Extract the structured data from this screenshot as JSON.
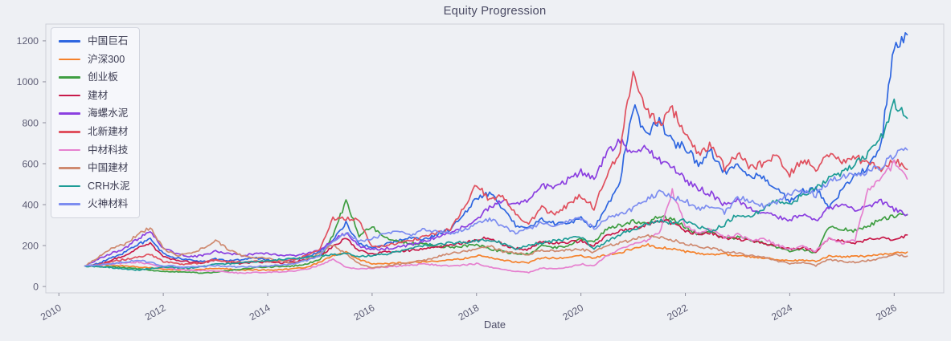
{
  "figure": {
    "background": "#eef0f4",
    "spine_color": "#cdd0d9",
    "tick_color": "#8e8e9c"
  },
  "chart_data": {
    "type": "line",
    "title": "Equity Progression",
    "xlabel": "Date",
    "ylabel": "",
    "grid": false,
    "legend_position": "upper-left",
    "xlim": [
      2009.75,
      2026.95
    ],
    "ylim": [
      -31,
      1282
    ],
    "x_ticks": [
      2010,
      2012,
      2014,
      2016,
      2018,
      2020,
      2022,
      2024,
      2026
    ],
    "y_ticks": [
      0,
      200,
      400,
      600,
      800,
      1000,
      1200
    ],
    "x": [
      2010.5,
      2010.75,
      2011,
      2011.25,
      2011.5,
      2011.75,
      2012,
      2012.25,
      2012.5,
      2012.75,
      2013,
      2013.25,
      2013.5,
      2013.75,
      2014,
      2014.25,
      2014.5,
      2014.75,
      2015,
      2015.25,
      2015.5,
      2015.75,
      2016,
      2016.25,
      2016.5,
      2016.75,
      2017,
      2017.25,
      2017.5,
      2017.75,
      2018,
      2018.25,
      2018.5,
      2018.75,
      2019,
      2019.25,
      2019.5,
      2019.75,
      2020,
      2020.25,
      2020.5,
      2020.75,
      2021,
      2021.25,
      2021.5,
      2021.75,
      2022,
      2022.25,
      2022.5,
      2022.75,
      2023,
      2023.25,
      2023.5,
      2023.75,
      2024,
      2024.25,
      2024.5,
      2024.75,
      2025,
      2025.25,
      2025.5,
      2025.75,
      2026,
      2026.25
    ],
    "series": [
      {
        "name": "中国巨石",
        "color": "#2e66e0",
        "values": [
          100,
          112,
          140,
          165,
          205,
          230,
          160,
          140,
          130,
          120,
          135,
          125,
          130,
          140,
          130,
          125,
          130,
          145,
          170,
          230,
          310,
          210,
          190,
          205,
          225,
          240,
          230,
          255,
          280,
          350,
          430,
          455,
          380,
          300,
          290,
          325,
          310,
          305,
          335,
          285,
          390,
          520,
          880,
          740,
          820,
          700,
          680,
          600,
          660,
          560,
          585,
          550,
          525,
          470,
          420,
          465,
          480,
          390,
          470,
          540,
          580,
          700,
          1180,
          1230
        ]
      },
      {
        "name": "沪深300",
        "color": "#f5812b",
        "values": [
          100,
          103,
          106,
          100,
          96,
          92,
          85,
          82,
          80,
          83,
          90,
          85,
          80,
          82,
          80,
          82,
          86,
          95,
          120,
          150,
          168,
          132,
          110,
          112,
          115,
          118,
          120,
          124,
          128,
          135,
          152,
          140,
          128,
          120,
          116,
          140,
          138,
          142,
          150,
          138,
          155,
          165,
          185,
          205,
          190,
          185,
          170,
          160,
          155,
          158,
          150,
          146,
          140,
          132,
          125,
          128,
          124,
          150,
          143,
          146,
          150,
          155,
          162,
          168
        ]
      },
      {
        "name": "创业板",
        "color": "#3f9e42",
        "values": [
          100,
          98,
          95,
          92,
          88,
          80,
          75,
          72,
          70,
          65,
          70,
          78,
          85,
          92,
          95,
          98,
          100,
          112,
          130,
          250,
          420,
          250,
          290,
          235,
          220,
          212,
          205,
          198,
          192,
          196,
          205,
          185,
          170,
          162,
          160,
          200,
          190,
          200,
          230,
          218,
          280,
          298,
          318,
          308,
          345,
          330,
          290,
          255,
          270,
          235,
          240,
          230,
          212,
          192,
          172,
          182,
          165,
          290,
          282,
          272,
          292,
          330,
          345,
          350
        ]
      },
      {
        "name": "建材",
        "color": "#c81a4a",
        "values": [
          100,
          105,
          130,
          150,
          185,
          210,
          145,
          130,
          120,
          115,
          130,
          120,
          112,
          118,
          120,
          116,
          120,
          130,
          150,
          195,
          235,
          175,
          160,
          168,
          172,
          178,
          182,
          192,
          200,
          215,
          232,
          238,
          205,
          185,
          182,
          220,
          210,
          215,
          222,
          200,
          252,
          268,
          282,
          300,
          325,
          310,
          272,
          255,
          262,
          235,
          232,
          222,
          212,
          198,
          182,
          192,
          172,
          232,
          222,
          215,
          228,
          238,
          228,
          252
        ]
      },
      {
        "name": "海螺水泥",
        "color": "#8b3fe0",
        "values": [
          100,
          132,
          162,
          185,
          232,
          268,
          185,
          162,
          145,
          152,
          172,
          162,
          152,
          158,
          162,
          152,
          150,
          162,
          182,
          225,
          262,
          198,
          180,
          186,
          192,
          205,
          222,
          242,
          262,
          292,
          325,
          385,
          420,
          398,
          420,
          498,
          478,
          518,
          558,
          535,
          648,
          712,
          652,
          682,
          618,
          578,
          522,
          478,
          452,
          398,
          418,
          378,
          362,
          338,
          328,
          352,
          322,
          382,
          398,
          378,
          388,
          418,
          378,
          352
        ]
      },
      {
        "name": "北新建材",
        "color": "#e0505e",
        "values": [
          100,
          108,
          122,
          132,
          142,
          158,
          122,
          112,
          108,
          118,
          132,
          122,
          118,
          122,
          120,
          125,
          132,
          152,
          185,
          330,
          332,
          330,
          190,
          200,
          212,
          225,
          242,
          262,
          282,
          385,
          498,
          425,
          442,
          352,
          305,
          385,
          352,
          398,
          448,
          385,
          552,
          655,
          1075,
          855,
          798,
          868,
          758,
          642,
          698,
          582,
          648,
          582,
          602,
          648,
          552,
          618,
          578,
          648,
          602,
          638,
          598,
          578,
          618,
          572
        ]
      },
      {
        "name": "中材科技",
        "color": "#e680cf",
        "values": [
          100,
          104,
          110,
          115,
          120,
          108,
          92,
          85,
          80,
          78,
          75,
          70,
          65,
          68,
          70,
          72,
          75,
          85,
          105,
          135,
          92,
          86,
          90,
          95,
          100,
          105,
          110,
          105,
          100,
          105,
          112,
          95,
          82,
          75,
          68,
          90,
          85,
          92,
          110,
          100,
          152,
          182,
          205,
          225,
          262,
          465,
          298,
          262,
          282,
          242,
          252,
          225,
          232,
          205,
          182,
          195,
          172,
          235,
          212,
          225,
          470,
          535,
          600,
          525
        ]
      },
      {
        "name": "中国建材",
        "color": "#cf8a70",
        "values": [
          100,
          142,
          185,
          205,
          252,
          288,
          185,
          152,
          162,
          185,
          225,
          182,
          152,
          142,
          138,
          125,
          112,
          132,
          162,
          205,
          158,
          112,
          92,
          98,
          108,
          118,
          128,
          145,
          162,
          172,
          185,
          198,
          172,
          162,
          158,
          178,
          172,
          178,
          182,
          168,
          198,
          212,
          228,
          248,
          238,
          228,
          208,
          195,
          188,
          172,
          162,
          152,
          142,
          125,
          112,
          118,
          102,
          132,
          122,
          118,
          128,
          138,
          158,
          148
        ]
      },
      {
        "name": "CRH水泥",
        "color": "#1d9c96",
        "values": [
          100,
          96,
          92,
          85,
          80,
          88,
          95,
          92,
          90,
          98,
          108,
          112,
          116,
          122,
          128,
          132,
          136,
          142,
          150,
          155,
          160,
          148,
          150,
          158,
          170,
          185,
          200,
          208,
          212,
          215,
          222,
          230,
          210,
          182,
          200,
          215,
          222,
          232,
          242,
          182,
          222,
          252,
          282,
          302,
          322,
          312,
          322,
          292,
          272,
          302,
          358,
          338,
          385,
          422,
          398,
          452,
          478,
          522,
          558,
          602,
          648,
          725,
          895,
          822
        ]
      },
      {
        "name": "火神材料",
        "color": "#7d8df0",
        "values": [
          100,
          105,
          112,
          120,
          128,
          118,
          102,
          98,
          95,
          98,
          102,
          98,
          95,
          98,
          100,
          105,
          112,
          128,
          152,
          225,
          262,
          222,
          232,
          258,
          272,
          252,
          278,
          268,
          258,
          278,
          308,
          328,
          298,
          262,
          282,
          312,
          298,
          318,
          332,
          282,
          338,
          358,
          382,
          422,
          458,
          438,
          418,
          378,
          398,
          362,
          438,
          412,
          392,
          408,
          452,
          468,
          448,
          512,
          535,
          552,
          562,
          582,
          638,
          668
        ]
      }
    ]
  }
}
